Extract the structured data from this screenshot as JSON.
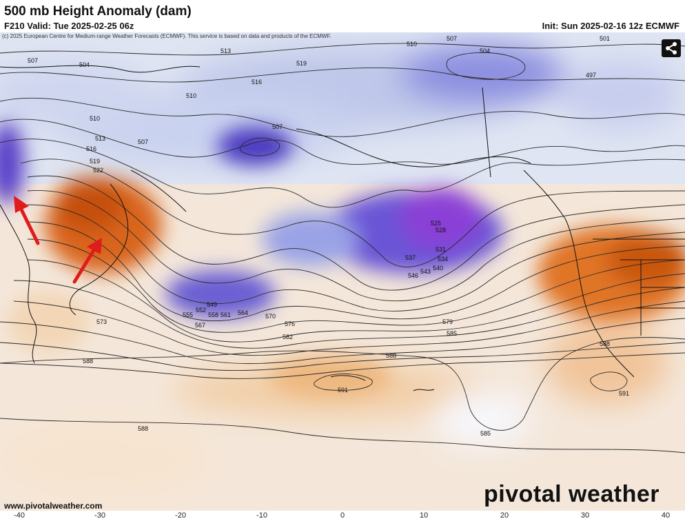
{
  "header": {
    "title": "500 mb Height Anomaly (dam)",
    "valid": "F210 Valid: Tue 2025-02-25 06z",
    "init": "Init: Sun 2025-02-16 12z ECMWF",
    "copyright": "(c) 2025 European Centre for Medium-range Weather Forecasts (ECMWF). This service is based on data and products of the ECMWF."
  },
  "watermark": {
    "credit": "www.pivotalweather.com",
    "brand": "pivotal weather"
  },
  "icons": {
    "share": "share-icon"
  },
  "colors": {
    "trough": "#5c3fc9",
    "ridge": "#d9651a",
    "contour": "#2a2a2a",
    "arrow": "#e01b1b"
  },
  "x_axis_ticks": [
    "-40",
    "-30",
    "-20",
    "-10",
    "0",
    "10",
    "20",
    "30",
    "40"
  ],
  "contour_labels": [
    "507",
    "504",
    "513",
    "519",
    "510",
    "507",
    "504",
    "501",
    "497",
    "510",
    "516",
    "507",
    "507",
    "510",
    "513",
    "519",
    "516",
    "522",
    "525",
    "528",
    "531",
    "534",
    "537",
    "540",
    "543",
    "546",
    "549",
    "552",
    "555",
    "558",
    "561",
    "564",
    "567",
    "570",
    "573",
    "576",
    "579",
    "582",
    "585",
    "588",
    "591",
    "588",
    "585",
    "588",
    "591",
    "588"
  ],
  "features": {
    "troughs": [
      "north-central pacific low",
      "gulf of alaska low",
      "east asia coast trough",
      "canada trough"
    ],
    "ridges": [
      "east asia ridge",
      "western us ridge",
      "subtropical ridge"
    ],
    "arrows": 2
  }
}
